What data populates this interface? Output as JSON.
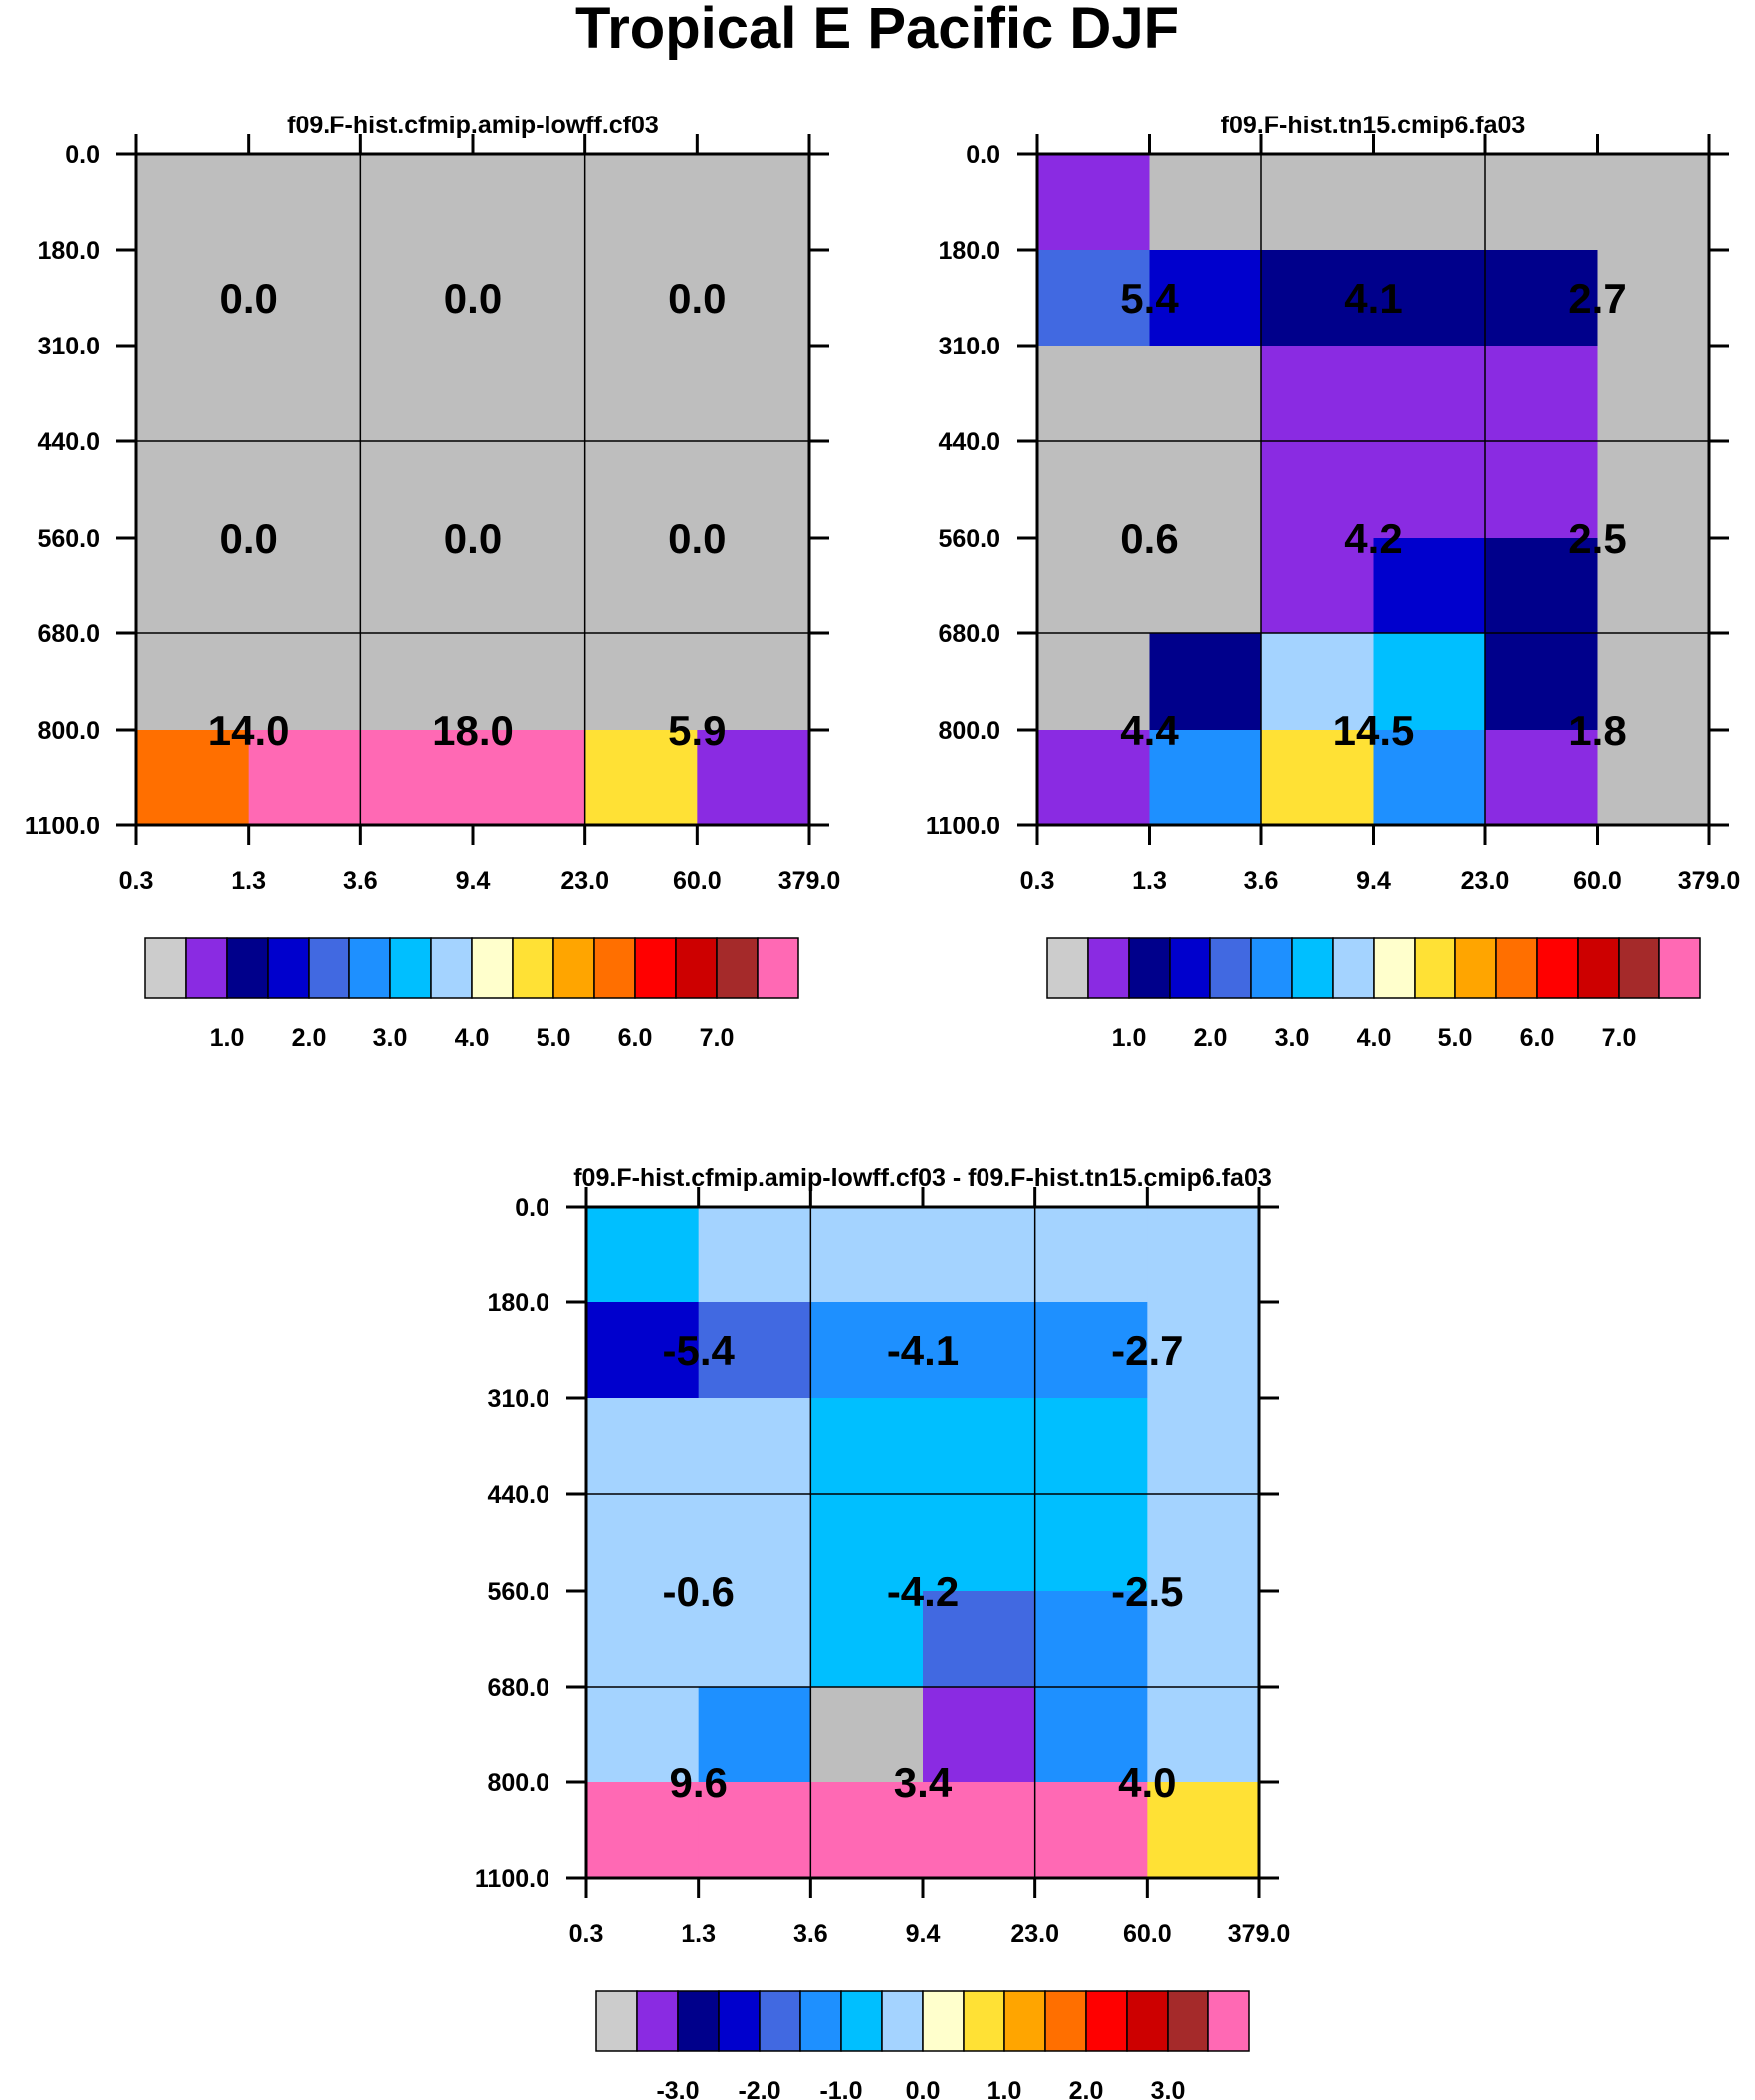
{
  "figure_title": "Tropical E Pacific DJF",
  "chart_data": [
    {
      "type": "heatmap",
      "title": "f09.F-hist.cfmip.amip-lowff.cf03",
      "x_tick_labels": [
        "0.3",
        "1.3",
        "3.6",
        "9.4",
        "23.0",
        "60.0",
        "379.0"
      ],
      "y_tick_labels": [
        "0.0",
        "180.0",
        "310.0",
        "440.0",
        "560.0",
        "680.0",
        "800.0",
        "1100.0"
      ],
      "x_bins": [
        "0.3-1.3",
        "1.3-3.6",
        "3.6-9.4",
        "9.4-23.0",
        "23.0-60.0",
        "60.0-379.0"
      ],
      "y_bins": [
        "0-180",
        "180-310",
        "310-440",
        "440-560",
        "560-680",
        "680-800",
        "800-1100"
      ],
      "cell_colors": [
        [
          "#bebebe",
          "#bebebe",
          "#bebebe",
          "#bebebe",
          "#bebebe",
          "#bebebe"
        ],
        [
          "#bebebe",
          "#bebebe",
          "#bebebe",
          "#bebebe",
          "#bebebe",
          "#bebebe"
        ],
        [
          "#bebebe",
          "#bebebe",
          "#bebebe",
          "#bebebe",
          "#bebebe",
          "#bebebe"
        ],
        [
          "#bebebe",
          "#bebebe",
          "#bebebe",
          "#bebebe",
          "#bebebe",
          "#bebebe"
        ],
        [
          "#bebebe",
          "#bebebe",
          "#bebebe",
          "#bebebe",
          "#bebebe",
          "#bebebe"
        ],
        [
          "#bebebe",
          "#bebebe",
          "#bebebe",
          "#bebebe",
          "#bebebe",
          "#bebebe"
        ],
        [
          "#ff6f00",
          "#ff69b4",
          "#ff69b4",
          "#ff69b4",
          "#ffe135",
          "#8a2be2"
        ]
      ],
      "summary_values": [
        [
          "0.0",
          "0.0",
          "0.0"
        ],
        [
          "0.0",
          "0.0",
          "0.0"
        ],
        [
          "14.0",
          "18.0",
          "5.9"
        ]
      ],
      "colorbar_labels": [
        "1.0",
        "2.0",
        "3.0",
        "4.0",
        "5.0",
        "6.0",
        "7.0"
      ]
    },
    {
      "type": "heatmap",
      "title": "f09.F-hist.tn15.cmip6.fa03",
      "x_tick_labels": [
        "0.3",
        "1.3",
        "3.6",
        "9.4",
        "23.0",
        "60.0",
        "379.0"
      ],
      "y_tick_labels": [
        "0.0",
        "180.0",
        "310.0",
        "440.0",
        "560.0",
        "680.0",
        "800.0",
        "1100.0"
      ],
      "x_bins": [
        "0.3-1.3",
        "1.3-3.6",
        "3.6-9.4",
        "9.4-23.0",
        "23.0-60.0",
        "60.0-379.0"
      ],
      "y_bins": [
        "0-180",
        "180-310",
        "310-440",
        "440-560",
        "560-680",
        "680-800",
        "800-1100"
      ],
      "cell_colors": [
        [
          "#8a2be2",
          "#bebebe",
          "#bebebe",
          "#bebebe",
          "#bebebe",
          "#bebebe"
        ],
        [
          "#4169e1",
          "#0000cd",
          "#00008b",
          "#00008b",
          "#00008b",
          "#bebebe"
        ],
        [
          "#bebebe",
          "#bebebe",
          "#8a2be2",
          "#8a2be2",
          "#8a2be2",
          "#bebebe"
        ],
        [
          "#bebebe",
          "#bebebe",
          "#8a2be2",
          "#8a2be2",
          "#8a2be2",
          "#bebebe"
        ],
        [
          "#bebebe",
          "#bebebe",
          "#8a2be2",
          "#0000cd",
          "#00008b",
          "#bebebe"
        ],
        [
          "#bebebe",
          "#00008b",
          "#a4d3ff",
          "#00bfff",
          "#00008b",
          "#bebebe"
        ],
        [
          "#8a2be2",
          "#1e90ff",
          "#ffe135",
          "#1e90ff",
          "#8a2be2",
          "#bebebe"
        ]
      ],
      "summary_values": [
        [
          "5.4",
          "4.1",
          "2.7"
        ],
        [
          "0.6",
          "4.2",
          "2.5"
        ],
        [
          "4.4",
          "14.5",
          "1.8"
        ]
      ],
      "colorbar_labels": [
        "1.0",
        "2.0",
        "3.0",
        "4.0",
        "5.0",
        "6.0",
        "7.0"
      ]
    },
    {
      "type": "heatmap",
      "title": "f09.F-hist.cfmip.amip-lowff.cf03 - f09.F-hist.tn15.cmip6.fa03",
      "x_tick_labels": [
        "0.3",
        "1.3",
        "3.6",
        "9.4",
        "23.0",
        "60.0",
        "379.0"
      ],
      "y_tick_labels": [
        "0.0",
        "180.0",
        "310.0",
        "440.0",
        "560.0",
        "680.0",
        "800.0",
        "1100.0"
      ],
      "x_bins": [
        "0.3-1.3",
        "1.3-3.6",
        "3.6-9.4",
        "9.4-23.0",
        "23.0-60.0",
        "60.0-379.0"
      ],
      "y_bins": [
        "0-180",
        "180-310",
        "310-440",
        "440-560",
        "560-680",
        "680-800",
        "800-1100"
      ],
      "cell_colors": [
        [
          "#00bfff",
          "#a4d3ff",
          "#a4d3ff",
          "#a4d3ff",
          "#a4d3ff",
          "#a4d3ff"
        ],
        [
          "#0000cd",
          "#4169e1",
          "#1e90ff",
          "#1e90ff",
          "#1e90ff",
          "#a4d3ff"
        ],
        [
          "#a4d3ff",
          "#a4d3ff",
          "#00bfff",
          "#00bfff",
          "#00bfff",
          "#a4d3ff"
        ],
        [
          "#a4d3ff",
          "#a4d3ff",
          "#00bfff",
          "#00bfff",
          "#00bfff",
          "#a4d3ff"
        ],
        [
          "#a4d3ff",
          "#a4d3ff",
          "#00bfff",
          "#4169e1",
          "#1e90ff",
          "#a4d3ff"
        ],
        [
          "#a4d3ff",
          "#1e90ff",
          "#bebebe",
          "#8a2be2",
          "#1e90ff",
          "#a4d3ff"
        ],
        [
          "#ff69b4",
          "#ff69b4",
          "#ff69b4",
          "#ff69b4",
          "#ff69b4",
          "#ffe135"
        ]
      ],
      "summary_values": [
        [
          "-5.4",
          "-4.1",
          "-2.7"
        ],
        [
          "-0.6",
          "-4.2",
          "-2.5"
        ],
        [
          "9.6",
          "3.4",
          "4.0"
        ]
      ],
      "colorbar_labels": [
        "-3.0",
        "-2.0",
        "-1.0",
        "0.0",
        "1.0",
        "2.0",
        "3.0"
      ]
    }
  ],
  "colorbar_colors": [
    "#cccccc",
    "#8a2be2",
    "#00008b",
    "#0000cd",
    "#4169e1",
    "#1e90ff",
    "#00bfff",
    "#a4d3ff",
    "#ffffcc",
    "#ffe135",
    "#ffa500",
    "#ff6f00",
    "#ff0000",
    "#cd0000",
    "#a52a2a",
    "#ff69b4"
  ]
}
